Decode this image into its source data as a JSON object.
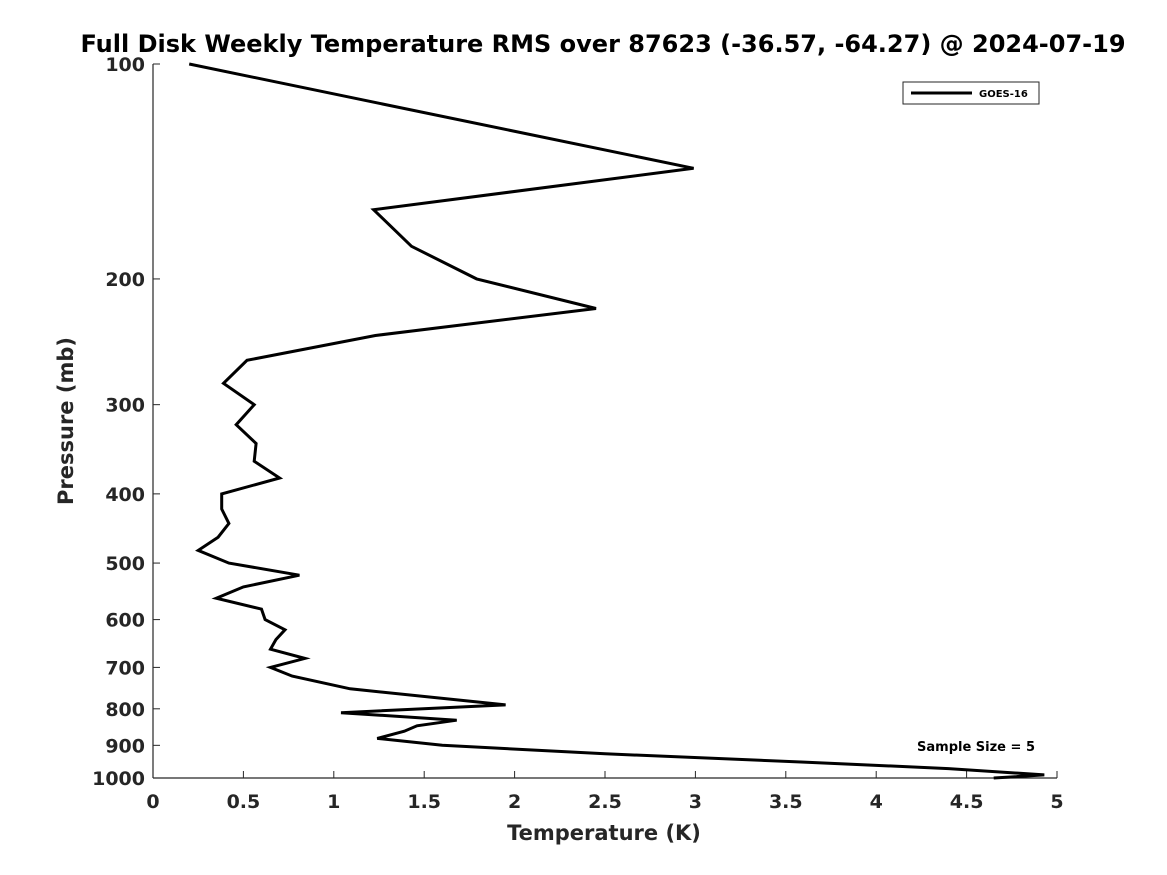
{
  "chart_data": {
    "type": "line",
    "title": "Full Disk Weekly Temperature RMS over 87623 (-36.57, -64.27) @ 2024-07-19",
    "xlabel": "Temperature (K)",
    "ylabel": "Pressure (mb)",
    "xlim": [
      0,
      5
    ],
    "ylim": [
      1000,
      100
    ],
    "yscale": "log",
    "grid": false,
    "legend_position": "top-right",
    "x_ticks": [
      "0",
      "0.5",
      "1",
      "1.5",
      "2",
      "2.5",
      "3",
      "3.5",
      "4",
      "4.5",
      "5"
    ],
    "y_ticks": [
      "100",
      "200",
      "300",
      "400",
      "500",
      "600",
      "700",
      "800",
      "900",
      "1000"
    ],
    "series": [
      {
        "name": "GOES-16",
        "color": "#000000",
        "x": [
          0.2,
          2.99,
          1.22,
          1.43,
          1.79,
          2.45,
          1.23,
          0.52,
          0.39,
          0.56,
          0.46,
          0.57,
          0.56,
          0.7,
          0.38,
          0.38,
          0.42,
          0.36,
          0.25,
          0.42,
          0.81,
          0.5,
          0.35,
          0.6,
          0.62,
          0.73,
          0.68,
          0.65,
          0.84,
          0.65,
          0.77,
          1.09,
          1.95,
          1.04,
          1.68,
          1.46,
          1.39,
          1.24,
          1.6,
          2.5,
          3.6,
          4.4,
          4.93,
          4.65
        ],
        "y": [
          100,
          140,
          160,
          180,
          200,
          220,
          240,
          260,
          280,
          300,
          320,
          340,
          360,
          380,
          400,
          420,
          440,
          460,
          480,
          500,
          520,
          540,
          560,
          580,
          600,
          620,
          640,
          660,
          680,
          700,
          720,
          750,
          790,
          810,
          830,
          845,
          860,
          880,
          900,
          925,
          950,
          970,
          990,
          1000
        ]
      }
    ],
    "annotation": "Sample Size = 5"
  }
}
